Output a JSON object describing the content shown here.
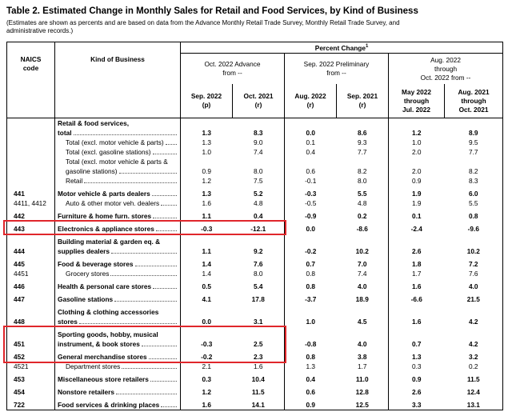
{
  "header": {
    "title": "Table 2.  Estimated Change in Monthly Sales for Retail and Food Services, by Kind of Business",
    "subtitle": "(Estimates are shown as percents and are based on data from the Advance Monthly Retail Trade Survey, Monthly Retail Trade Survey, and administrative records.)"
  },
  "table": {
    "code_header": [
      "NAICS",
      "code"
    ],
    "kind_header": "Kind of Business",
    "percent_change": "Percent Change",
    "footnote_mark": "1",
    "groups": [
      [
        "Oct. 2022 Advance",
        "from --"
      ],
      [
        "Sep. 2022 Preliminary",
        "from --"
      ],
      [
        "Aug. 2022",
        "through",
        "Oct. 2022 from --"
      ]
    ],
    "columns": [
      [
        "Sep. 2022",
        "(p)"
      ],
      [
        "Oct. 2021",
        "(r)"
      ],
      [
        "Aug. 2022",
        "(r)"
      ],
      [
        "Sep. 2021",
        "(r)"
      ],
      [
        "May 2022",
        "through",
        "Jul. 2022"
      ],
      [
        "Aug. 2021",
        "through",
        "Oct. 2021"
      ]
    ],
    "rows": [
      {
        "code": "",
        "label": [
          "Retail & food services,",
          "total"
        ],
        "bold": true,
        "values": [
          "1.3",
          "8.3",
          "0.0",
          "8.6",
          "1.2",
          "8.9"
        ]
      },
      {
        "code": "",
        "label": [
          "Total (excl. motor vehicle & parts)"
        ],
        "bold": false,
        "values": [
          "1.3",
          "9.0",
          "0.1",
          "9.3",
          "1.0",
          "9.5"
        ]
      },
      {
        "code": "",
        "label": [
          "Total (excl. gasoline stations)"
        ],
        "bold": false,
        "values": [
          "1.0",
          "7.4",
          "0.4",
          "7.7",
          "2.0",
          "7.7"
        ]
      },
      {
        "code": "",
        "label": [
          "Total (excl. motor vehicle & parts &",
          "gasoline stations)"
        ],
        "bold": false,
        "values": [
          "0.9",
          "8.0",
          "0.6",
          "8.2",
          "2.0",
          "8.2"
        ]
      },
      {
        "code": "",
        "label": [
          "Retail"
        ],
        "bold": false,
        "values": [
          "1.2",
          "7.5",
          "-0.1",
          "8.0",
          "0.9",
          "8.3"
        ]
      },
      {
        "code": "441",
        "label": [
          "Motor vehicle & parts dealers"
        ],
        "bold": true,
        "values": [
          "1.3",
          "5.2",
          "-0.3",
          "5.5",
          "1.9",
          "6.0"
        ]
      },
      {
        "code": "4411, 4412",
        "label": [
          "Auto & other motor veh. dealers"
        ],
        "bold": false,
        "values": [
          "1.6",
          "4.8",
          "-0.5",
          "4.8",
          "1.9",
          "5.5"
        ]
      },
      {
        "code": "442",
        "label": [
          "Furniture & home furn. stores"
        ],
        "bold": true,
        "values": [
          "1.1",
          "0.4",
          "-0.9",
          "0.2",
          "0.1",
          "0.8"
        ]
      },
      {
        "code": "443",
        "label": [
          "Electronics & appliance stores"
        ],
        "bold": true,
        "values": [
          "-0.3",
          "-12.1",
          "0.0",
          "-8.6",
          "-2.4",
          "-9.6"
        ]
      },
      {
        "code": "444",
        "label": [
          "Building material & garden eq. &",
          "supplies dealers"
        ],
        "bold": true,
        "values": [
          "1.1",
          "9.2",
          "-0.2",
          "10.2",
          "2.6",
          "10.2"
        ]
      },
      {
        "code": "445",
        "label": [
          "Food & beverage stores"
        ],
        "bold": true,
        "values": [
          "1.4",
          "7.6",
          "0.7",
          "7.0",
          "1.8",
          "7.2"
        ]
      },
      {
        "code": "4451",
        "label": [
          "Grocery stores"
        ],
        "bold": false,
        "values": [
          "1.4",
          "8.0",
          "0.8",
          "7.4",
          "1.7",
          "7.6"
        ]
      },
      {
        "code": "446",
        "label": [
          "Health & personal care stores"
        ],
        "bold": true,
        "values": [
          "0.5",
          "5.4",
          "0.8",
          "4.0",
          "1.6",
          "4.0"
        ]
      },
      {
        "code": "447",
        "label": [
          "Gasoline stations"
        ],
        "bold": true,
        "values": [
          "4.1",
          "17.8",
          "-3.7",
          "18.9",
          "-6.6",
          "21.5"
        ]
      },
      {
        "code": "448",
        "label": [
          "Clothing & clothing accessories",
          "stores"
        ],
        "bold": true,
        "values": [
          "0.0",
          "3.1",
          "1.0",
          "4.5",
          "1.6",
          "4.2"
        ]
      },
      {
        "code": "451",
        "label": [
          "Sporting goods, hobby, musical",
          "instrument, & book stores"
        ],
        "bold": true,
        "values": [
          "-0.3",
          "2.5",
          "-0.8",
          "4.0",
          "0.7",
          "4.2"
        ]
      },
      {
        "code": "452",
        "label": [
          "General merchandise stores"
        ],
        "bold": true,
        "values": [
          "-0.2",
          "2.3",
          "0.8",
          "3.8",
          "1.3",
          "3.2"
        ]
      },
      {
        "code": "4521",
        "label": [
          "Department stores"
        ],
        "bold": false,
        "values": [
          "2.1",
          "1.6",
          "1.3",
          "1.7",
          "0.3",
          "0.2"
        ]
      },
      {
        "code": "453",
        "label": [
          "Miscellaneous store retailers"
        ],
        "bold": true,
        "values": [
          "0.3",
          "10.4",
          "0.4",
          "11.0",
          "0.9",
          "11.5"
        ]
      },
      {
        "code": "454",
        "label": [
          "Nonstore retailers"
        ],
        "bold": true,
        "values": [
          "1.2",
          "11.5",
          "0.6",
          "12.8",
          "2.6",
          "12.4"
        ]
      },
      {
        "code": "722",
        "label": [
          "Food services & drinking places"
        ],
        "bold": true,
        "values": [
          "1.6",
          "14.1",
          "0.9",
          "12.5",
          "3.3",
          "13.1"
        ]
      }
    ]
  }
}
